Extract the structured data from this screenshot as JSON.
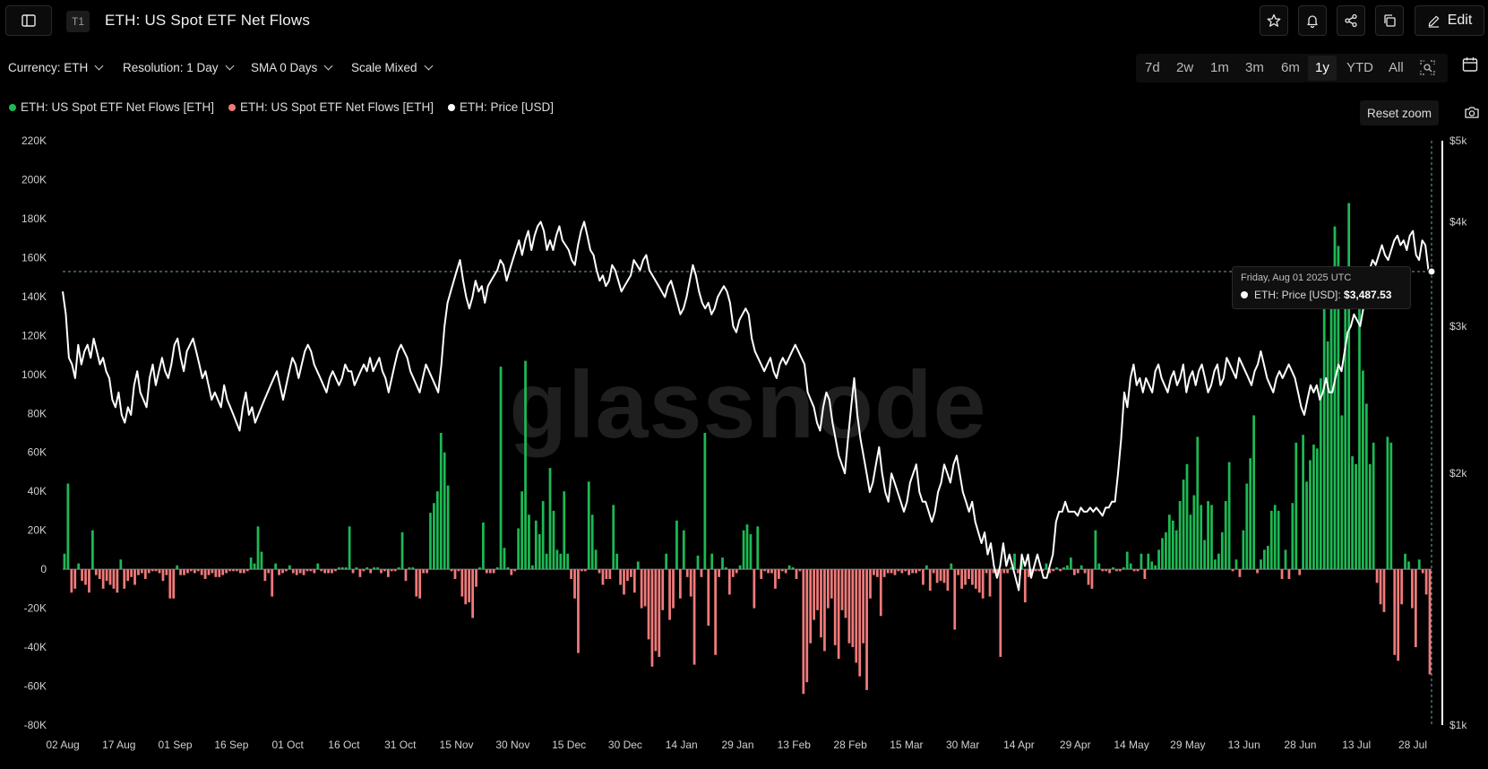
{
  "header": {
    "tab_badge": "T1",
    "title": "ETH: US Spot ETF Net Flows",
    "edit_label": "Edit"
  },
  "icons": [
    "sidebar-toggle-icon",
    "star-icon",
    "bell-icon",
    "share-icon",
    "copy-icon",
    "pencil-icon",
    "calendar-icon",
    "zoom-icon",
    "camera-icon",
    "chevron-down-icon"
  ],
  "controls": {
    "currency": "Currency: ETH",
    "resolution": "Resolution: 1 Day",
    "sma": "SMA 0 Days",
    "scale": "Scale Mixed"
  },
  "ranges": [
    "7d",
    "2w",
    "1m",
    "3m",
    "6m",
    "1y",
    "YTD",
    "All"
  ],
  "active_range": "1y",
  "legend": [
    {
      "label": "ETH: US Spot ETF Net Flows [ETH]",
      "color": "#1db954"
    },
    {
      "label": "ETH: US Spot ETF Net Flows [ETH]",
      "color": "#f07a7a"
    },
    {
      "label": "ETH: Price [USD]",
      "color": "#ffffff"
    }
  ],
  "reset_zoom": "Reset zoom",
  "watermark": "glassnode",
  "tooltip": {
    "date": "Friday, Aug 01 2025 UTC",
    "label": "ETH: Price [USD]:",
    "value": "$3,487.53"
  },
  "chart_data": {
    "type": "bar",
    "x_ticks": [
      "02 Aug",
      "17 Aug",
      "01 Sep",
      "16 Sep",
      "01 Oct",
      "16 Oct",
      "31 Oct",
      "15 Nov",
      "30 Nov",
      "15 Dec",
      "30 Dec",
      "14 Jan",
      "29 Jan",
      "13 Feb",
      "28 Feb",
      "15 Mar",
      "30 Mar",
      "14 Apr",
      "29 Apr",
      "14 May",
      "29 May",
      "13 Jun",
      "28 Jun",
      "13 Jul",
      "28 Jul"
    ],
    "y_left_ticks": [
      "220K",
      "200K",
      "180K",
      "160K",
      "140K",
      "120K",
      "100K",
      "80K",
      "60K",
      "40K",
      "20K",
      "0",
      "-20K",
      "-40K",
      "-60K",
      "-80K"
    ],
    "y_right_ticks": [
      "$5k",
      "$4k",
      "$3k",
      "$2k",
      "$1k"
    ],
    "ylim_left": [
      -80000,
      220000
    ],
    "ylim_right": [
      1000,
      5000
    ],
    "right_scale": "log",
    "series": [
      {
        "name": "ETH: US Spot ETF Net Flows [ETH]",
        "kind": "bar",
        "values": [
          8000,
          44000,
          -12000,
          -10000,
          3000,
          -6000,
          -8000,
          -12000,
          20000,
          -3000,
          -5000,
          -10000,
          -6000,
          -8000,
          -10000,
          -12000,
          5000,
          -10000,
          -6000,
          -4000,
          -8000,
          -3000,
          -2000,
          -5000,
          -2000,
          -1000,
          -1000,
          -2000,
          -6000,
          -3000,
          -15000,
          -15000,
          2000,
          -3000,
          -3000,
          -2000,
          -1000,
          -2000,
          -1000,
          -3000,
          -5000,
          -3000,
          -2000,
          -4000,
          -4000,
          -3000,
          -2000,
          -1000,
          -1000,
          -1000,
          -2000,
          -2000,
          -1000,
          6000,
          3000,
          22000,
          9000,
          -6000,
          -2000,
          -14000,
          3000,
          -3000,
          -2000,
          -1000,
          2000,
          -2000,
          -3000,
          -2000,
          -3000,
          -1000,
          -1000,
          -2000,
          3000,
          -1000,
          -2000,
          -2000,
          -2000,
          -1000,
          1000,
          1000,
          1000,
          22000,
          -2000,
          1000,
          -4000,
          -1000,
          1000,
          -2000,
          1000,
          1000,
          -2000,
          -1000,
          -4000,
          -1000,
          -1000,
          1000,
          19000,
          -6000,
          1000,
          1000,
          -14000,
          -15000,
          -2000,
          -2000,
          29000,
          34000,
          40000,
          70000,
          60000,
          43000,
          -1000,
          -5000,
          -1000,
          -14000,
          -18000,
          -17000,
          -25000,
          -9000,
          1000,
          24000,
          -2000,
          -2000,
          -2000,
          1000,
          104000,
          11000,
          1000,
          -3000,
          -1000,
          21000,
          40000,
          107000,
          28000,
          2000,
          25000,
          18000,
          35000,
          8000,
          52000,
          30000,
          10000,
          8000,
          40000,
          8000,
          -5000,
          -15000,
          -43000,
          -1000,
          -1000,
          45000,
          28000,
          10000,
          -2000,
          -8000,
          -5000,
          -5000,
          33000,
          8000,
          -8000,
          -13000,
          -6000,
          -4000,
          -12000,
          4000,
          -20000,
          -19000,
          -36000,
          -50000,
          -42000,
          -45000,
          -21000,
          8000,
          -26000,
          -20000,
          25000,
          -15000,
          20000,
          -4000,
          -14000,
          -49000,
          7000,
          -4000,
          70000,
          -29000,
          8000,
          -44000,
          -4000,
          6000,
          1000,
          -13000,
          -4000,
          -2000,
          2000,
          20000,
          23000,
          18000,
          -20000,
          22000,
          -5000,
          -1000,
          -2000,
          -2000,
          -10000,
          -5000,
          -1000,
          -2000,
          2000,
          1000,
          -5000,
          -1000,
          -64000,
          -58000,
          -38000,
          -26000,
          -21000,
          -35000,
          -42000,
          -20000,
          -15000,
          -39000,
          -46000,
          -21000,
          -25000,
          -38000,
          -40000,
          -48000,
          -55000,
          -38000,
          -62000,
          -15000,
          -3000,
          -4000,
          -24000,
          -4000,
          -2000,
          -2000,
          -3000,
          -1000,
          -2000,
          -1000,
          -3000,
          -2000,
          -2000,
          -1000,
          -8000,
          2000,
          -11000,
          -2000,
          -7000,
          -6000,
          -7000,
          -11000,
          3000,
          -31000,
          -3000,
          -10000,
          -8000,
          -5000,
          -8000,
          -10000,
          -12000,
          -15000,
          -2000,
          -14000,
          -2000,
          -3000,
          -45000,
          -2000,
          -2000,
          1000,
          8000,
          -2000,
          4000,
          -17000,
          -4000,
          -2000,
          -1000,
          -1000,
          -1000,
          3000,
          -2000,
          -1000,
          1000,
          -1000,
          1000,
          2000,
          6000,
          -3000,
          -2000,
          2000,
          -2000,
          -8000,
          -10000,
          20000,
          3000,
          -1000,
          -1000,
          -2000,
          1000,
          -1000,
          -1000,
          1000,
          9000,
          3000,
          -1000,
          -1000,
          8000,
          -5000,
          8000,
          4000,
          2000,
          10000,
          16000,
          19000,
          28000,
          25000,
          20000,
          35000,
          46000,
          54000,
          28000,
          38000,
          68000,
          33000,
          15000,
          35000,
          33000,
          5000,
          8000,
          19000,
          35000,
          55000,
          -1000,
          5000,
          -4000,
          20000,
          44000,
          57000,
          79000,
          -2000,
          5000,
          10000,
          12000,
          30000,
          33000,
          30000,
          -5000,
          10000,
          -5000,
          34000,
          65000,
          -3000,
          69000,
          45000,
          56000,
          64000,
          62000,
          98000,
          135000,
          117000,
          153000,
          176000,
          166000,
          79000,
          143000,
          188000,
          58000,
          54000,
          152000,
          102000,
          85000,
          54000,
          65000,
          -7000,
          -18000,
          -22000,
          68000,
          65000,
          -44000,
          -47000,
          -18000,
          8000,
          4000,
          -20000,
          -40000,
          5000,
          -2000,
          -13000,
          -54000
        ]
      },
      {
        "name": "ETH: Price [USD]",
        "kind": "line",
        "values": [
          3300,
          3100,
          2750,
          2700,
          2600,
          2850,
          2700,
          2800,
          2850,
          2750,
          2900,
          2800,
          2700,
          2750,
          2650,
          2600,
          2450,
          2400,
          2500,
          2350,
          2300,
          2400,
          2350,
          2550,
          2650,
          2500,
          2450,
          2400,
          2600,
          2700,
          2550,
          2650,
          2750,
          2650,
          2600,
          2700,
          2850,
          2900,
          2750,
          2650,
          2800,
          2850,
          2900,
          2800,
          2700,
          2600,
          2650,
          2550,
          2450,
          2500,
          2450,
          2400,
          2550,
          2450,
          2400,
          2350,
          2300,
          2250,
          2400,
          2500,
          2350,
          2400,
          2300,
          2350,
          2400,
          2450,
          2500,
          2550,
          2600,
          2650,
          2550,
          2450,
          2550,
          2650,
          2750,
          2700,
          2600,
          2700,
          2800,
          2850,
          2800,
          2700,
          2650,
          2600,
          2550,
          2500,
          2600,
          2650,
          2600,
          2550,
          2600,
          2700,
          2650,
          2650,
          2550,
          2600,
          2650,
          2700,
          2650,
          2750,
          2650,
          2700,
          2750,
          2650,
          2600,
          2500,
          2600,
          2700,
          2800,
          2850,
          2800,
          2750,
          2650,
          2600,
          2550,
          2500,
          2600,
          2700,
          2650,
          2600,
          2550,
          2500,
          2700,
          3000,
          3200,
          3300,
          3400,
          3500,
          3600,
          3400,
          3250,
          3150,
          3250,
          3400,
          3300,
          3350,
          3200,
          3350,
          3400,
          3450,
          3500,
          3600,
          3550,
          3400,
          3500,
          3600,
          3700,
          3800,
          3650,
          3800,
          3900,
          3700,
          3850,
          3950,
          4000,
          3900,
          3700,
          3800,
          3700,
          3850,
          3950,
          3800,
          3750,
          3700,
          3600,
          3550,
          3750,
          3900,
          4000,
          3850,
          3700,
          3650,
          3500,
          3400,
          3450,
          3350,
          3400,
          3550,
          3500,
          3400,
          3300,
          3350,
          3400,
          3450,
          3600,
          3550,
          3500,
          3600,
          3650,
          3500,
          3450,
          3400,
          3350,
          3300,
          3250,
          3350,
          3400,
          3300,
          3200,
          3100,
          3150,
          3250,
          3400,
          3550,
          3450,
          3300,
          3200,
          3150,
          3200,
          3100,
          3150,
          3250,
          3300,
          3350,
          3300,
          3200,
          3000,
          2950,
          3050,
          3100,
          3150,
          3100,
          2900,
          2800,
          2750,
          2700,
          2650,
          2700,
          2750,
          2650,
          2600,
          2700,
          2750,
          2700,
          2750,
          2800,
          2850,
          2800,
          2750,
          2700,
          2500,
          2450,
          2400,
          2300,
          2250,
          2400,
          2500,
          2450,
          2300,
          2200,
          2100,
          2050,
          2000,
          2200,
          2400,
          2600,
          2350,
          2200,
          2100,
          2000,
          1900,
          1950,
          2050,
          2150,
          2000,
          1900,
          1850,
          2000,
          1950,
          1900,
          1850,
          1800,
          1850,
          1950,
          2000,
          2050,
          1900,
          1850,
          1850,
          1800,
          1750,
          1800,
          1900,
          1950,
          2050,
          2000,
          1950,
          2050,
          2100,
          2000,
          1900,
          1850,
          1800,
          1850,
          1750,
          1700,
          1650,
          1700,
          1600,
          1650,
          1550,
          1500,
          1550,
          1650,
          1550,
          1600,
          1550,
          1500,
          1450,
          1600,
          1550,
          1600,
          1500,
          1550,
          1600,
          1550,
          1500,
          1500,
          1550,
          1600,
          1750,
          1800,
          1800,
          1850,
          1800,
          1800,
          1800,
          1780,
          1820,
          1800,
          1800,
          1820,
          1800,
          1820,
          1800,
          1780,
          1820,
          1820,
          1850,
          1850,
          2000,
          2200,
          2500,
          2400,
          2600,
          2700,
          2550,
          2600,
          2500,
          2600,
          2550,
          2500,
          2650,
          2700,
          2600,
          2550,
          2500,
          2600,
          2650,
          2550,
          2600,
          2700,
          2500,
          2600,
          2650,
          2550,
          2650,
          2700,
          2600,
          2500,
          2550,
          2650,
          2700,
          2550,
          2600,
          2750,
          2700,
          2650,
          2600,
          2750,
          2700,
          2650,
          2600,
          2550,
          2650,
          2700,
          2800,
          2700,
          2600,
          2550,
          2500,
          2600,
          2650,
          2600,
          2650,
          2700,
          2650,
          2600,
          2500,
          2400,
          2350,
          2450,
          2550,
          2500,
          2550,
          2450,
          2500,
          2600,
          2500,
          2500,
          2600,
          2700,
          2650,
          2800,
          2950,
          3000,
          3100,
          3050,
          3000,
          3150,
          3300,
          3500,
          3600,
          3550,
          3650,
          3750,
          3650,
          3600,
          3700,
          3800,
          3850,
          3750,
          3800,
          3700,
          3850,
          3900,
          3650,
          3600,
          3800,
          3750,
          3500,
          3487.53
        ]
      }
    ],
    "crosshair": {
      "date": "Aug 01 2025",
      "price": 3487.53
    },
    "grid": false,
    "legend_position": "top-left"
  }
}
